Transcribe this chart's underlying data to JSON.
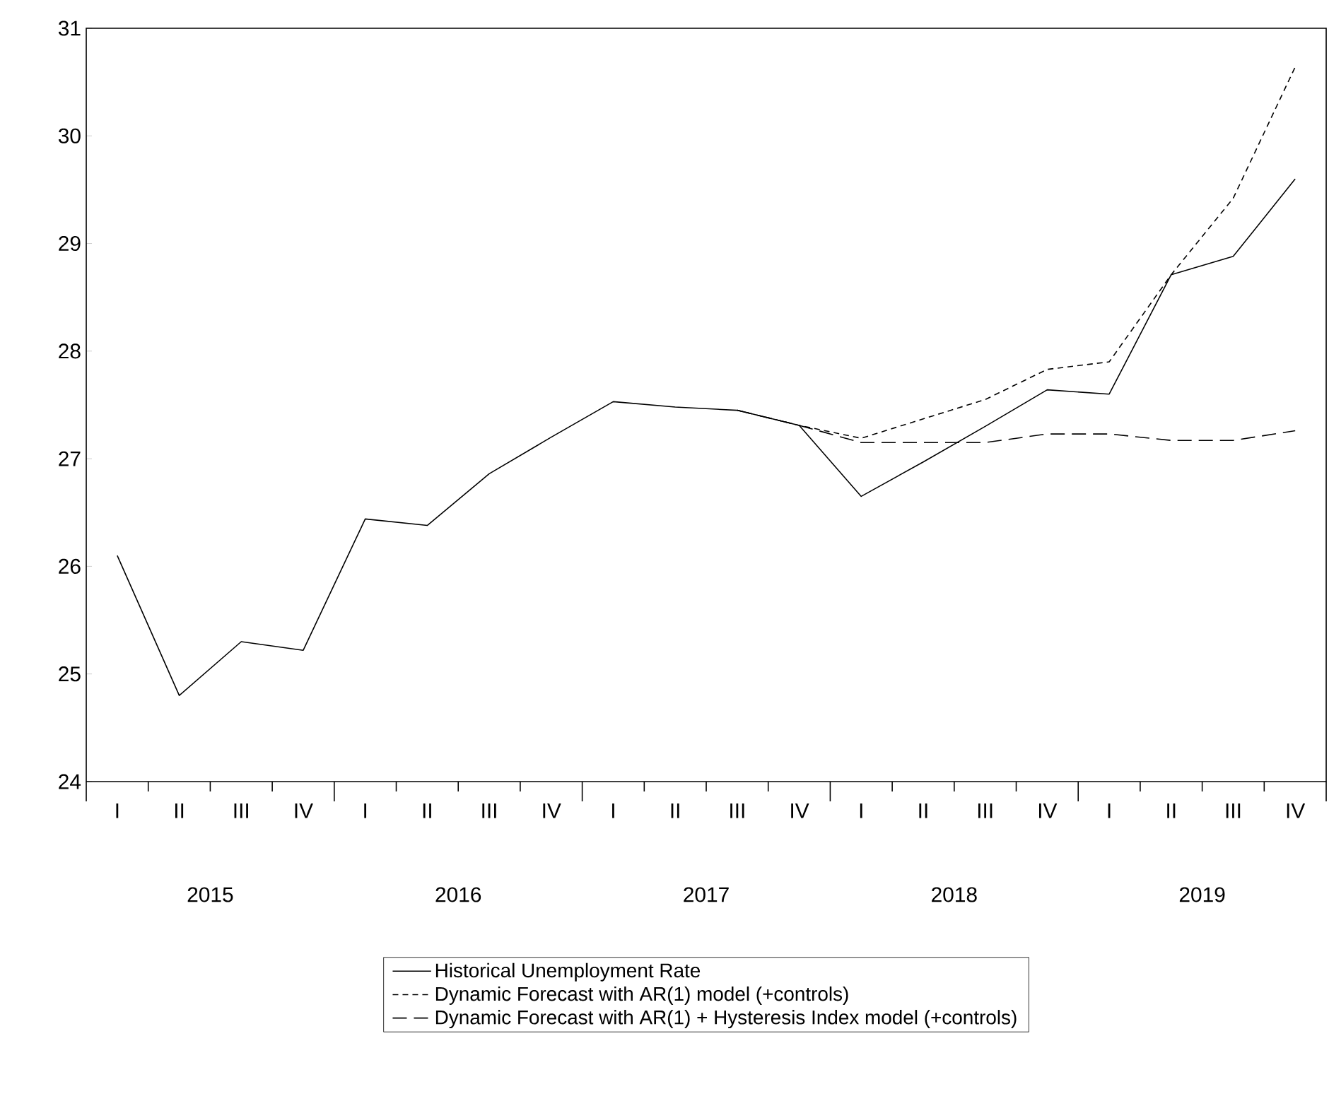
{
  "chart_data": {
    "type": "line",
    "categories": [
      "I",
      "II",
      "III",
      "IV",
      "I",
      "II",
      "III",
      "IV",
      "I",
      "II",
      "III",
      "IV",
      "I",
      "II",
      "III",
      "IV",
      "I",
      "II",
      "III",
      "IV"
    ],
    "annotations": [
      "2015",
      "2016",
      "2017",
      "2018",
      "2019"
    ],
    "ylim": [
      24,
      31
    ],
    "yticks": [
      24,
      25,
      26,
      27,
      28,
      29,
      30,
      31
    ],
    "legend": "bottom",
    "grid": false,
    "series": [
      {
        "name": "Historical Unemployment Rate",
        "color": "#000000",
        "line_style": "solid",
        "values": [
          26.1,
          24.8,
          25.3,
          25.22,
          26.44,
          26.38,
          26.86,
          27.2,
          27.53,
          27.48,
          27.45,
          27.31,
          26.65,
          26.97,
          27.3,
          27.64,
          27.6,
          28.71,
          28.88,
          29.6
        ]
      },
      {
        "name": "Dynamic Forecast with AR(1) model (+controls)",
        "color": "#000000",
        "line_style": "dashed",
        "values": [
          null,
          null,
          null,
          null,
          null,
          null,
          null,
          null,
          null,
          null,
          27.45,
          27.31,
          27.19,
          27.37,
          27.55,
          27.83,
          27.9,
          28.71,
          29.42,
          30.64
        ]
      },
      {
        "name": "Dynamic Forecast with AR(1) + Hysteresis Index model (+controls)",
        "color": "#000000",
        "line_style": "dashed",
        "values": [
          null,
          null,
          null,
          null,
          null,
          null,
          null,
          null,
          null,
          null,
          27.45,
          27.31,
          27.15,
          27.15,
          27.15,
          27.23,
          27.23,
          27.17,
          27.17,
          27.26
        ]
      }
    ]
  }
}
